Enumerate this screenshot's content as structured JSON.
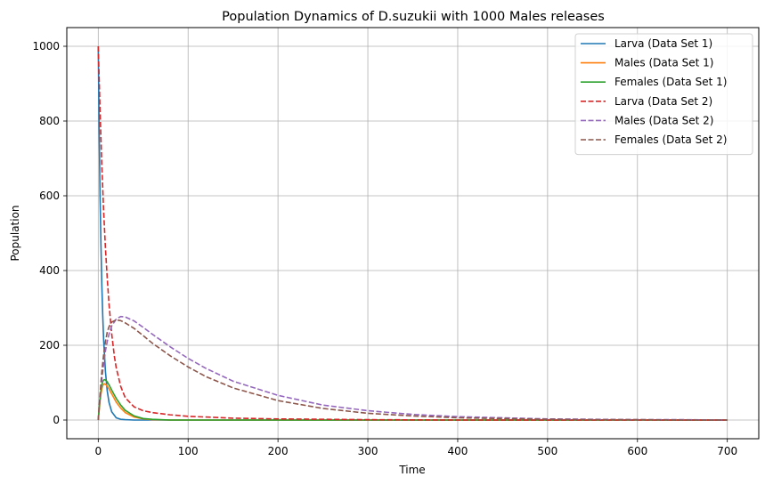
{
  "chart_data": {
    "type": "line",
    "title": "Population Dynamics of D.suzukii with 1000 Males releases",
    "xlabel": "Time",
    "ylabel": "Population",
    "xlim": [
      -35,
      735
    ],
    "ylim": [
      -50,
      1050
    ],
    "xticks": [
      0,
      100,
      200,
      300,
      400,
      500,
      600,
      700
    ],
    "yticks": [
      0,
      200,
      400,
      600,
      800,
      1000
    ],
    "grid": true,
    "legend_position": "top-right",
    "series": [
      {
        "name": "Larva (Data Set 1)",
        "color": "#1f77b4",
        "style": "solid",
        "x": [
          0,
          1,
          2,
          3,
          4,
          5,
          6,
          8,
          10,
          12,
          15,
          20,
          25,
          30,
          40,
          50,
          60,
          80,
          100,
          150,
          200,
          300,
          400,
          500,
          600,
          700
        ],
        "y": [
          1000,
          780,
          600,
          470,
          360,
          280,
          215,
          130,
          78,
          47,
          22,
          6,
          2,
          1,
          0,
          0,
          0,
          0,
          0,
          0,
          0,
          0,
          0,
          0,
          0,
          0
        ]
      },
      {
        "name": "Males (Data Set 1)",
        "color": "#ff7f0e",
        "style": "solid",
        "x": [
          0,
          1,
          2,
          3,
          4,
          5,
          6,
          7,
          8,
          10,
          12,
          15,
          20,
          25,
          30,
          40,
          50,
          60,
          80,
          100,
          150,
          200,
          300,
          400,
          500,
          600,
          700
        ],
        "y": [
          0,
          25,
          50,
          70,
          84,
          92,
          96,
          97,
          96,
          91,
          83,
          70,
          48,
          32,
          20,
          8,
          3,
          1,
          0,
          0,
          0,
          0,
          0,
          0,
          0,
          0,
          0
        ]
      },
      {
        "name": "Females (Data Set 1)",
        "color": "#2ca02c",
        "style": "solid",
        "x": [
          0,
          1,
          2,
          3,
          4,
          5,
          6,
          7,
          8,
          9,
          10,
          12,
          15,
          20,
          25,
          30,
          40,
          50,
          60,
          80,
          100,
          150,
          200,
          300,
          400,
          500,
          600,
          700
        ],
        "y": [
          0,
          30,
          58,
          80,
          95,
          103,
          107,
          108,
          107,
          105,
          102,
          94,
          80,
          58,
          40,
          26,
          11,
          4,
          2,
          0,
          0,
          0,
          0,
          0,
          0,
          0,
          0,
          0
        ]
      },
      {
        "name": "Larva (Data Set 2)",
        "color": "#d62728",
        "style": "dashed",
        "x": [
          0,
          2,
          4,
          6,
          8,
          10,
          12,
          15,
          18,
          20,
          25,
          30,
          40,
          50,
          60,
          80,
          100,
          150,
          200,
          300,
          400,
          500,
          600,
          700
        ],
        "y": [
          1000,
          830,
          680,
          560,
          460,
          380,
          310,
          230,
          170,
          140,
          90,
          60,
          35,
          25,
          20,
          14,
          10,
          5,
          3,
          1,
          0,
          0,
          0,
          0
        ]
      },
      {
        "name": "Males (Data Set 2)",
        "color": "#9467bd",
        "style": "dashed",
        "x": [
          0,
          2,
          4,
          6,
          8,
          10,
          12,
          15,
          20,
          25,
          30,
          40,
          50,
          60,
          80,
          100,
          120,
          150,
          200,
          250,
          300,
          350,
          400,
          450,
          500,
          550,
          600,
          650,
          700
        ],
        "y": [
          0,
          60,
          110,
          150,
          185,
          210,
          230,
          252,
          270,
          277,
          276,
          265,
          248,
          230,
          196,
          165,
          138,
          104,
          66,
          40,
          25,
          15,
          9,
          6,
          3,
          2,
          1,
          1,
          0
        ]
      },
      {
        "name": "Females (Data Set 2)",
        "color": "#8c564b",
        "style": "dashed",
        "x": [
          0,
          2,
          4,
          6,
          8,
          10,
          12,
          15,
          20,
          25,
          30,
          40,
          50,
          60,
          80,
          100,
          120,
          150,
          200,
          250,
          300,
          350,
          400,
          450,
          500,
          550,
          600,
          650,
          700
        ],
        "y": [
          0,
          70,
          130,
          175,
          210,
          235,
          250,
          262,
          268,
          266,
          260,
          245,
          226,
          206,
          172,
          142,
          116,
          86,
          52,
          31,
          18,
          11,
          6,
          4,
          2,
          1,
          1,
          0,
          0
        ]
      }
    ]
  }
}
